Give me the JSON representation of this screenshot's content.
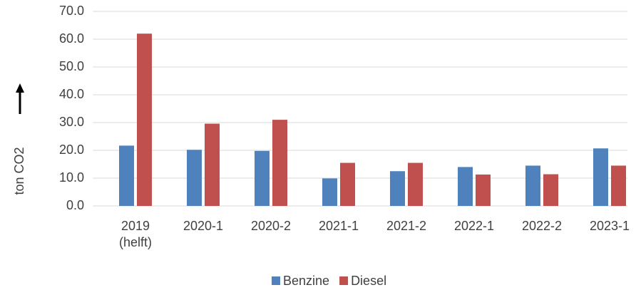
{
  "chart_data": {
    "type": "bar",
    "y_axis_label": "ton CO2",
    "categories": [
      "2019 (helft)",
      "2020-1",
      "2020-2",
      "2021-1",
      "2021-2",
      "2022-1",
      "2022-2",
      "2023-1"
    ],
    "series": [
      {
        "name": "Benzine",
        "color": "#4f81bd",
        "values": [
          21.7,
          20.2,
          19.8,
          9.9,
          12.5,
          14.0,
          14.5,
          20.7
        ]
      },
      {
        "name": "Diesel",
        "color": "#c0504d",
        "values": [
          62.0,
          29.6,
          31.0,
          15.5,
          15.5,
          11.3,
          11.4,
          14.5
        ]
      }
    ],
    "ylim": [
      0,
      70
    ],
    "yticks": [
      {
        "value": 0,
        "label": "0.0"
      },
      {
        "value": 10,
        "label": "10.0"
      },
      {
        "value": 20,
        "label": "20.0"
      },
      {
        "value": 30,
        "label": "30.0"
      },
      {
        "value": 40,
        "label": "40.0"
      },
      {
        "value": 50,
        "label": "50.0"
      },
      {
        "value": 60,
        "label": "60.0"
      },
      {
        "value": 70,
        "label": "70.0"
      }
    ],
    "grid": true,
    "legend": "bottom"
  }
}
